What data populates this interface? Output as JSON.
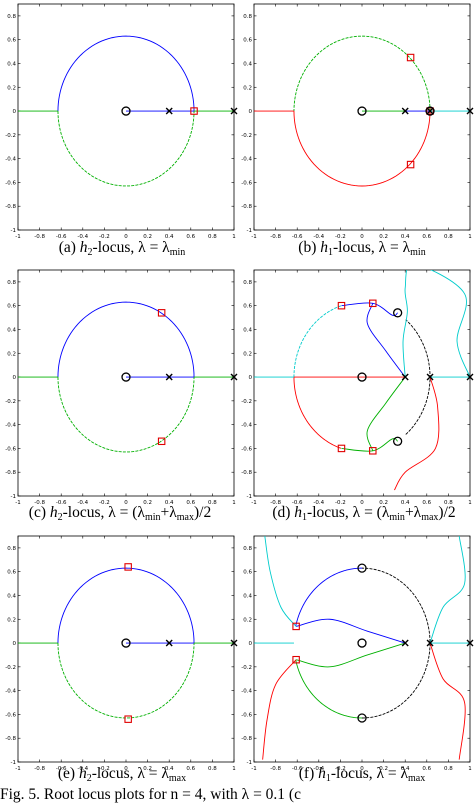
{
  "figure_caption": "Fig. 5. Root locus plots for n = 4, with λ = 0.1 (c",
  "chart_data": [
    {
      "type": "line",
      "panel": "a",
      "caption": {
        "label": "(a)",
        "h": "h",
        "sub": "2",
        "rest": "-locus, λ = λ",
        "lsub": "min"
      },
      "xlim": [
        -1,
        1
      ],
      "ylim": [
        -1,
        0.9
      ],
      "xticks": [
        "-1",
        "-0.8",
        "-0.6",
        "-0.4",
        "-0.2",
        "0",
        "0.2",
        "0.4",
        "0.6",
        "0.8",
        "1"
      ],
      "yticks": [
        "-1",
        "-0.8",
        "-0.6",
        "-0.4",
        "-0.2",
        "0",
        "0.2",
        "0.4",
        "0.6",
        "0.8"
      ],
      "series": [
        {
          "color": "#0000ff",
          "kind": "arc",
          "cx": 0,
          "cy": 0,
          "r": 0.63,
          "from": 0,
          "to": 180
        },
        {
          "color": "#00b000",
          "kind": "arc",
          "cx": 0,
          "cy": 0,
          "r": 0.63,
          "from": 180,
          "to": 360,
          "dashed": true
        },
        {
          "color": "#00b000",
          "kind": "line",
          "points": [
            [
              -1,
              0
            ],
            [
              -0.63,
              0
            ]
          ]
        },
        {
          "color": "#0000ff",
          "kind": "line",
          "points": [
            [
              0,
              0
            ],
            [
              0.4,
              0
            ]
          ]
        },
        {
          "color": "#0000ff",
          "kind": "line",
          "points": [
            [
              0.4,
              0
            ],
            [
              0.63,
              0
            ]
          ]
        },
        {
          "color": "#00b000",
          "kind": "line",
          "points": [
            [
              0.63,
              0
            ],
            [
              1,
              0
            ]
          ]
        }
      ],
      "zeros": [
        [
          0,
          0
        ]
      ],
      "poles": [
        [
          0.4,
          0
        ],
        [
          1,
          0
        ]
      ],
      "markers": [
        [
          0.63,
          0
        ]
      ]
    },
    {
      "type": "line",
      "panel": "b",
      "caption": {
        "label": "(b)",
        "h": "h",
        "sub": "1",
        "rest": "-locus, λ = λ",
        "lsub": "min"
      },
      "xlim": [
        -1,
        1
      ],
      "ylim": [
        -1,
        0.9
      ],
      "xticks": [
        "-1",
        "-0.8",
        "-0.6",
        "-0.4",
        "-0.2",
        "0",
        "0.2",
        "0.4",
        "0.6",
        "0.8",
        "1"
      ],
      "yticks": [
        "-1",
        "-0.8",
        "-0.6",
        "-0.4",
        "-0.2",
        "0",
        "0.2",
        "0.4",
        "0.6",
        "0.8"
      ],
      "series": [
        {
          "color": "#00b000",
          "kind": "arc",
          "cx": 0,
          "cy": 0,
          "r": 0.63,
          "from": 0,
          "to": 180,
          "dashed": true
        },
        {
          "color": "#ff0000",
          "kind": "arc",
          "cx": 0,
          "cy": 0,
          "r": 0.63,
          "from": 180,
          "to": 360
        },
        {
          "color": "#ff0000",
          "kind": "line",
          "points": [
            [
              -1,
              0
            ],
            [
              -0.63,
              0
            ]
          ]
        },
        {
          "color": "#00b000",
          "kind": "line",
          "points": [
            [
              0,
              0
            ],
            [
              0.4,
              0
            ]
          ]
        },
        {
          "color": "#0000ff",
          "kind": "line",
          "points": [
            [
              0.4,
              0
            ],
            [
              0.63,
              0
            ]
          ]
        },
        {
          "color": "#00cccc",
          "kind": "line",
          "points": [
            [
              0.63,
              0
            ],
            [
              1,
              0
            ]
          ]
        }
      ],
      "zeros": [
        [
          0,
          0
        ],
        [
          0.63,
          0
        ]
      ],
      "poles": [
        [
          0.4,
          0
        ],
        [
          0.63,
          0
        ],
        [
          1,
          0
        ]
      ],
      "markers": [
        [
          0.45,
          0.45
        ],
        [
          0.45,
          -0.45
        ],
        [
          0.63,
          0
        ]
      ]
    },
    {
      "type": "line",
      "panel": "c",
      "caption": {
        "label": "(c)",
        "h": "h",
        "sub": "2",
        "rest": "-locus, λ = (λ",
        "lsub": "min",
        "mid": "+λ",
        "lsub2": "max",
        "tail": ")/2"
      },
      "xlim": [
        -1,
        1
      ],
      "ylim": [
        -1,
        0.9
      ],
      "xticks": [
        "-1",
        "-0.8",
        "-0.6",
        "-0.4",
        "-0.2",
        "0",
        "0.2",
        "0.4",
        "0.6",
        "0.8",
        "1"
      ],
      "yticks": [
        "-1",
        "-0.8",
        "-0.6",
        "-0.4",
        "-0.2",
        "0",
        "0.2",
        "0.4",
        "0.6",
        "0.8"
      ],
      "series": [
        {
          "color": "#0000ff",
          "kind": "arc",
          "cx": 0,
          "cy": 0,
          "r": 0.63,
          "from": 0,
          "to": 180
        },
        {
          "color": "#00b000",
          "kind": "arc",
          "cx": 0,
          "cy": 0,
          "r": 0.63,
          "from": 180,
          "to": 360,
          "dashed": true
        },
        {
          "color": "#00b000",
          "kind": "line",
          "points": [
            [
              -1,
              0
            ],
            [
              -0.63,
              0
            ]
          ]
        },
        {
          "color": "#0000ff",
          "kind": "line",
          "points": [
            [
              0,
              0
            ],
            [
              0.4,
              0
            ]
          ]
        },
        {
          "color": "#0000ff",
          "kind": "line",
          "points": [
            [
              0.4,
              0
            ],
            [
              0.63,
              0
            ]
          ]
        },
        {
          "color": "#00b000",
          "kind": "line",
          "points": [
            [
              0.63,
              0
            ],
            [
              1,
              0
            ]
          ]
        }
      ],
      "zeros": [
        [
          0,
          0
        ]
      ],
      "poles": [
        [
          0.4,
          0
        ],
        [
          1,
          0
        ]
      ],
      "markers": [
        [
          0.33,
          0.54
        ],
        [
          0.33,
          -0.54
        ]
      ]
    },
    {
      "type": "line",
      "panel": "d",
      "caption": {
        "label": "(d)",
        "h": "h",
        "sub": "1",
        "rest": "-locus, λ = (λ",
        "lsub": "min",
        "mid": "+λ",
        "lsub2": "max",
        "tail": ")/2"
      },
      "xlim": [
        -1,
        1
      ],
      "ylim": [
        -1,
        0.9
      ],
      "xticks": [
        "-1",
        "-0.8",
        "-0.6",
        "-0.4",
        "-0.2",
        "0",
        "0.2",
        "0.4",
        "0.6",
        "0.8",
        "1"
      ],
      "yticks": [
        "-1",
        "-0.8",
        "-0.6",
        "-0.4",
        "-0.2",
        "0",
        "0.2",
        "0.4",
        "0.6",
        "0.8"
      ],
      "series": [
        {
          "color": "#00cccc",
          "kind": "arc",
          "cx": 0,
          "cy": 0,
          "r": 0.63,
          "from": 108,
          "to": 180,
          "dashed": true
        },
        {
          "color": "#ff0000",
          "kind": "arc",
          "cx": 0,
          "cy": 0,
          "r": 0.63,
          "from": 180,
          "to": 252
        },
        {
          "color": "#000000",
          "kind": "arc",
          "cx": 0,
          "cy": 0,
          "r": 0.63,
          "from": -50,
          "to": 50,
          "dashed": true
        },
        {
          "color": "#0000ff",
          "kind": "curve",
          "points": [
            [
              -0.19,
              0.6
            ],
            [
              0.1,
              0.62
            ],
            [
              0.28,
              0.52
            ],
            [
              0.33,
              0.54
            ]
          ]
        },
        {
          "color": "#0000ff",
          "kind": "curve",
          "points": [
            [
              0.1,
              0.62
            ],
            [
              0.05,
              0.45
            ],
            [
              0.22,
              0.22
            ],
            [
              0.4,
              0
            ]
          ]
        },
        {
          "color": "#00b000",
          "kind": "curve",
          "points": [
            [
              0.4,
              0
            ],
            [
              0.22,
              -0.22
            ],
            [
              0.05,
              -0.45
            ],
            [
              0.1,
              -0.62
            ]
          ]
        },
        {
          "color": "#00b000",
          "kind": "curve",
          "points": [
            [
              -0.19,
              -0.6
            ],
            [
              0.1,
              -0.62
            ],
            [
              0.28,
              -0.52
            ],
            [
              0.33,
              -0.54
            ]
          ]
        },
        {
          "color": "#00cccc",
          "kind": "curve",
          "points": [
            [
              0.4,
              0
            ],
            [
              0.38,
              0.3
            ],
            [
              0.42,
              0.55
            ],
            [
              0.4,
              0.75
            ],
            [
              0.48,
              0.95
            ],
            [
              0.95,
              0.7
            ],
            [
              0.88,
              0.3
            ],
            [
              1,
              0
            ]
          ]
        },
        {
          "color": "#ff0000",
          "kind": "curve",
          "points": [
            [
              0.63,
              0
            ],
            [
              0.7,
              -0.25
            ],
            [
              0.68,
              -0.6
            ],
            [
              0.4,
              -0.8
            ],
            [
              0.3,
              -0.95
            ]
          ]
        },
        {
          "color": "#00cccc",
          "kind": "line",
          "points": [
            [
              -1,
              0
            ],
            [
              -0.63,
              0
            ]
          ]
        },
        {
          "color": "#ff0000",
          "kind": "line",
          "points": [
            [
              -0.63,
              0
            ],
            [
              0.4,
              0
            ]
          ]
        },
        {
          "color": "#00cccc",
          "kind": "line",
          "points": [
            [
              0.63,
              0
            ],
            [
              1,
              0
            ]
          ]
        }
      ],
      "zeros": [
        [
          0,
          0
        ],
        [
          0.33,
          0.54
        ],
        [
          0.33,
          -0.54
        ]
      ],
      "poles": [
        [
          0.4,
          0
        ],
        [
          0.63,
          0
        ],
        [
          1,
          0
        ]
      ],
      "markers": [
        [
          -0.19,
          0.6
        ],
        [
          0.1,
          0.62
        ],
        [
          -0.19,
          -0.6
        ],
        [
          0.1,
          -0.62
        ]
      ]
    },
    {
      "type": "line",
      "panel": "e",
      "caption": {
        "label": "(e)",
        "h": "h",
        "sub": "2",
        "rest": "-locus, λ = λ",
        "lsub": "max"
      },
      "xlim": [
        -1,
        1
      ],
      "ylim": [
        -1,
        0.9
      ],
      "xticks": [
        "-1",
        "-0.8",
        "-0.6",
        "-0.4",
        "-0.2",
        "0",
        "0.2",
        "0.4",
        "0.6",
        "0.8",
        "1"
      ],
      "yticks": [
        "-1",
        "-0.8",
        "-0.6",
        "-0.4",
        "-0.2",
        "0",
        "0.2",
        "0.4",
        "0.6",
        "0.8"
      ],
      "series": [
        {
          "color": "#0000ff",
          "kind": "arc",
          "cx": 0,
          "cy": 0,
          "r": 0.63,
          "from": 0,
          "to": 180
        },
        {
          "color": "#00b000",
          "kind": "arc",
          "cx": 0,
          "cy": 0,
          "r": 0.63,
          "from": 180,
          "to": 360,
          "dashed": true
        },
        {
          "color": "#00b000",
          "kind": "line",
          "points": [
            [
              -1,
              0
            ],
            [
              -0.63,
              0
            ]
          ]
        },
        {
          "color": "#0000ff",
          "kind": "line",
          "points": [
            [
              0,
              0
            ],
            [
              0.4,
              0
            ]
          ]
        },
        {
          "color": "#0000ff",
          "kind": "line",
          "points": [
            [
              0.4,
              0
            ],
            [
              0.63,
              0
            ]
          ]
        },
        {
          "color": "#00b000",
          "kind": "line",
          "points": [
            [
              0.63,
              0
            ],
            [
              1,
              0
            ]
          ]
        }
      ],
      "zeros": [
        [
          0,
          0
        ]
      ],
      "poles": [
        [
          0.4,
          0
        ],
        [
          1,
          0
        ]
      ],
      "markers": [
        [
          0.02,
          0.64
        ],
        [
          0.02,
          -0.64
        ]
      ]
    },
    {
      "type": "line",
      "panel": "f",
      "caption": {
        "label": "(f)",
        "h": "h",
        "sub": "1",
        "rest": "-locus, λ = λ",
        "lsub": "max"
      },
      "xlim": [
        -1,
        1
      ],
      "ylim": [
        -1,
        0.9
      ],
      "xticks": [
        "-1",
        "-0.8",
        "-0.6",
        "-0.4",
        "-0.2",
        "0",
        "0.2",
        "0.4",
        "0.6",
        "0.8",
        "1"
      ],
      "yticks": [
        "-1",
        "-0.8",
        "-0.6",
        "-0.4",
        "-0.2",
        "0",
        "0.2",
        "0.4",
        "0.6",
        "0.8"
      ],
      "series": [
        {
          "color": "#0000ff",
          "kind": "arc",
          "cx": 0,
          "cy": 0,
          "r": 0.63,
          "from": 90,
          "to": 167
        },
        {
          "color": "#00b000",
          "kind": "arc",
          "cx": 0,
          "cy": 0,
          "r": 0.63,
          "from": 193,
          "to": 270
        },
        {
          "color": "#000000",
          "kind": "arc",
          "cx": 0,
          "cy": 0,
          "r": 0.63,
          "from": -90,
          "to": 90,
          "dashed": true
        },
        {
          "color": "#00cccc",
          "kind": "line",
          "points": [
            [
              -1,
              0
            ],
            [
              -0.63,
              0
            ]
          ]
        },
        {
          "color": "#0000ff",
          "kind": "curve",
          "points": [
            [
              -0.61,
              0.14
            ],
            [
              -0.3,
              0.2
            ],
            [
              0.05,
              0.1
            ],
            [
              0.4,
              0
            ]
          ]
        },
        {
          "color": "#00b000",
          "kind": "curve",
          "points": [
            [
              -0.61,
              -0.14
            ],
            [
              -0.3,
              -0.2
            ],
            [
              0.05,
              -0.1
            ],
            [
              0.4,
              0
            ]
          ]
        },
        {
          "color": "#00cccc",
          "kind": "curve",
          "points": [
            [
              -0.61,
              0.14
            ],
            [
              -0.75,
              0.3
            ],
            [
              -0.85,
              0.6
            ],
            [
              -0.9,
              0.9
            ]
          ]
        },
        {
          "color": "#ff0000",
          "kind": "curve",
          "points": [
            [
              -0.61,
              -0.14
            ],
            [
              -0.8,
              -0.35
            ],
            [
              -0.88,
              -0.65
            ],
            [
              -0.92,
              -0.98
            ]
          ]
        },
        {
          "color": "#00cccc",
          "kind": "curve",
          "points": [
            [
              0.63,
              0
            ],
            [
              0.75,
              0.3
            ],
            [
              0.95,
              0.5
            ],
            [
              0.9,
              0.9
            ]
          ]
        },
        {
          "color": "#ff0000",
          "kind": "curve",
          "points": [
            [
              0.63,
              0
            ],
            [
              0.75,
              -0.3
            ],
            [
              0.95,
              -0.5
            ],
            [
              0.9,
              -0.98
            ]
          ]
        },
        {
          "color": "#00cccc",
          "kind": "line",
          "points": [
            [
              0.63,
              0
            ],
            [
              1,
              0
            ]
          ]
        }
      ],
      "zeros": [
        [
          0,
          0.63
        ],
        [
          0,
          0
        ],
        [
          0,
          -0.63
        ]
      ],
      "poles": [
        [
          0.4,
          0
        ],
        [
          0.63,
          0
        ],
        [
          1,
          0
        ]
      ],
      "markers": [
        [
          -0.61,
          0.14
        ],
        [
          -0.61,
          -0.14
        ]
      ]
    }
  ]
}
